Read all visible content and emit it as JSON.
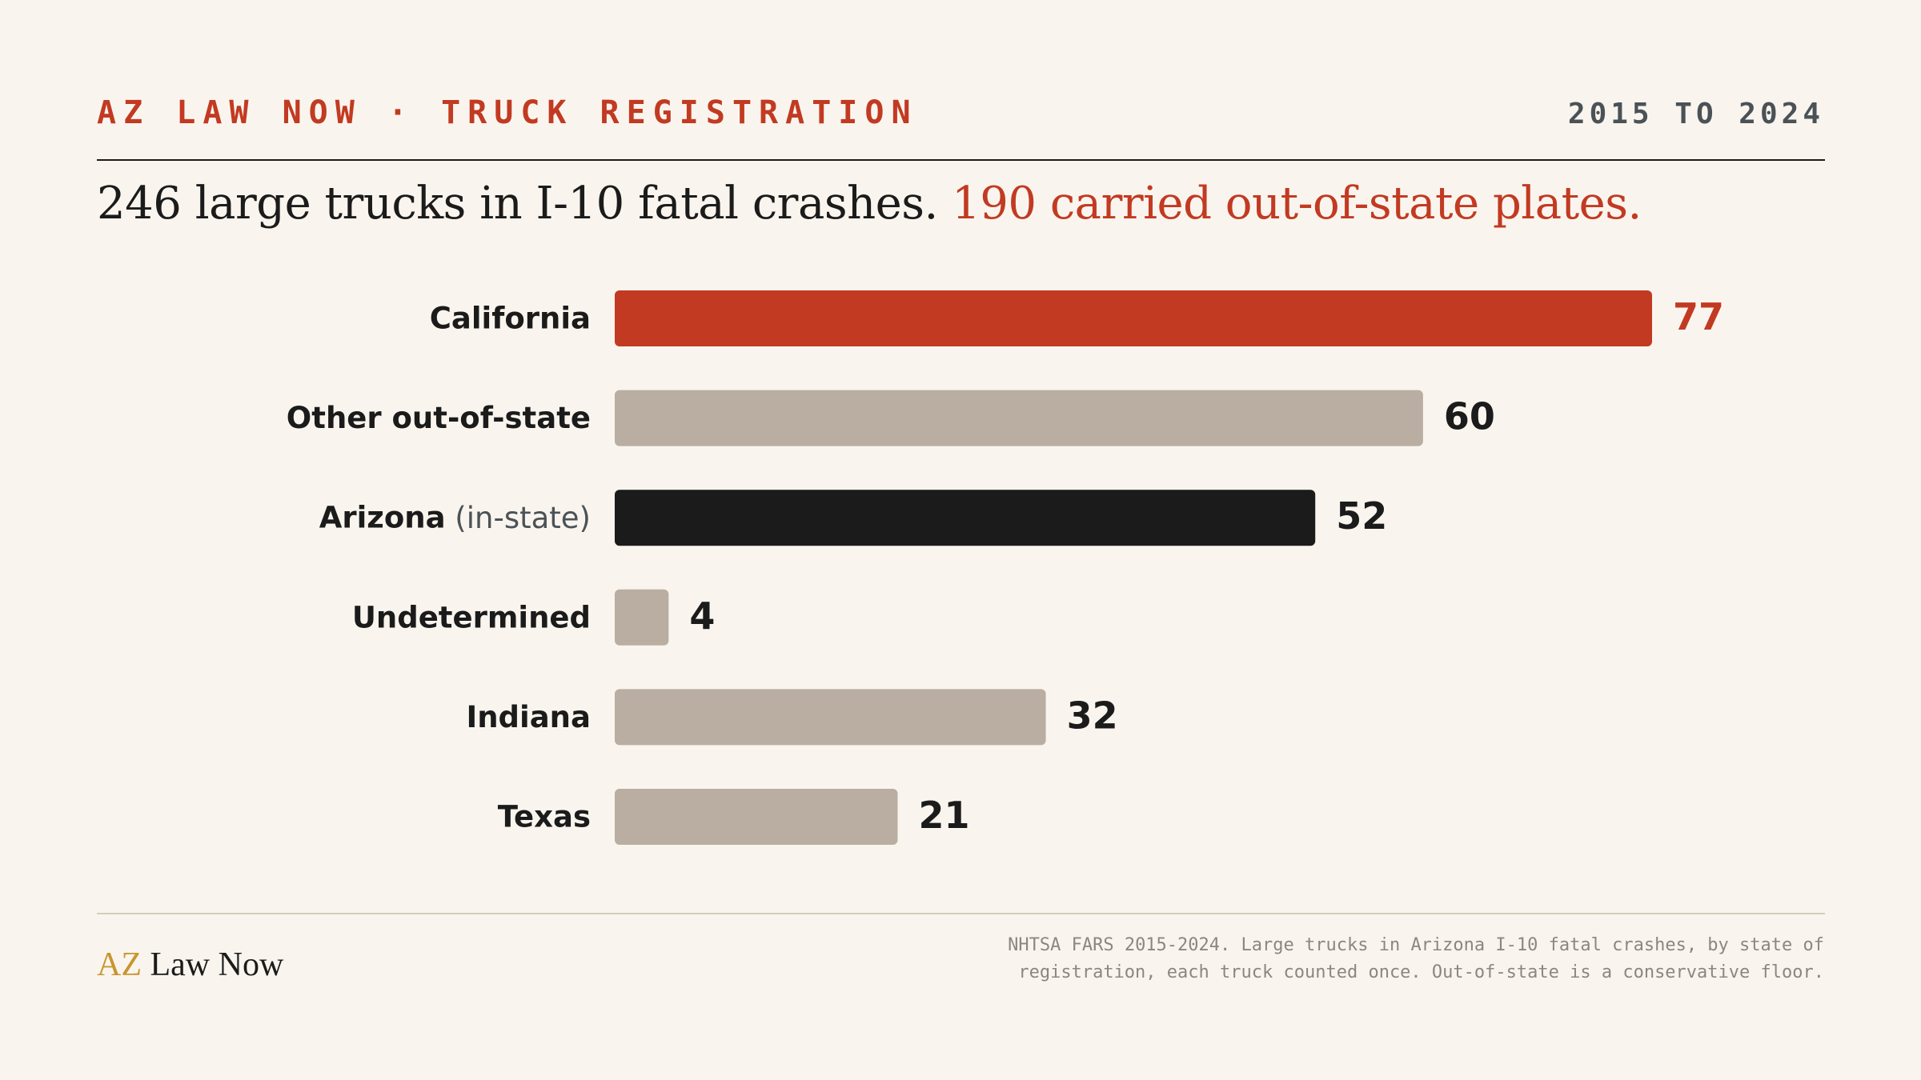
{
  "header": {
    "kicker": "AZ LAW NOW · TRUCK REGISTRATION",
    "years": "2015 TO 2024"
  },
  "headline": {
    "main": "246 large trucks in I-10 fatal crashes. ",
    "accent": "190 carried out-of-state plates."
  },
  "chart_data": {
    "type": "bar",
    "orientation": "horizontal",
    "categories": [
      "California",
      "Other out-of-state",
      "Arizona",
      "Undetermined",
      "Indiana",
      "Texas"
    ],
    "category_notes": [
      "",
      "",
      "(in-state)",
      "",
      "",
      ""
    ],
    "values": [
      77,
      60,
      52,
      4,
      32,
      21
    ],
    "bar_colors": [
      "#c23a22",
      "#b9aea1",
      "#1b1b1b",
      "#b9aea1",
      "#b9aea1",
      "#b9aea1"
    ],
    "value_label_colors": [
      "#c23a22",
      "#1b1b1b",
      "#1b1b1b",
      "#1b1b1b",
      "#1b1b1b",
      "#1b1b1b"
    ],
    "xlim": [
      0,
      77
    ],
    "grid": false,
    "data_labels": true
  },
  "footer": {
    "brand_az": "AZ",
    "brand_rest": " Law Now",
    "source_line1": "NHTSA FARS 2015-2024. Large trucks in Arizona I-10 fatal crashes, by state of",
    "source_line2": "registration, each truck counted once. Out-of-state is a conservative floor."
  },
  "colors": {
    "background": "#f9f5ee",
    "accent": "#c23a22",
    "neutral_bar": "#b9aea1",
    "ink": "#1b1b1b",
    "muted": "#4b5257",
    "brand_gold": "#c99530"
  }
}
